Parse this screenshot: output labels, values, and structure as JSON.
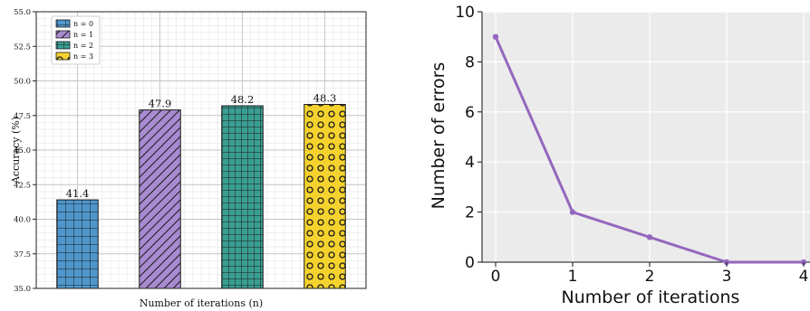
{
  "chart_data": [
    {
      "type": "bar",
      "categories": [
        "n = 0",
        "n = 1",
        "n = 2",
        "n = 3"
      ],
      "values": [
        41.4,
        47.9,
        48.2,
        48.3
      ],
      "data_labels": [
        "41.4",
        "47.9",
        "48.2",
        "48.3"
      ],
      "series": [
        {
          "name": "n = 0",
          "value": 41.4,
          "color": "#4f97cc",
          "pattern": "grid"
        },
        {
          "name": "n = 1",
          "value": 47.9,
          "color": "#a98bd1",
          "pattern": "diagonal-hatch"
        },
        {
          "name": "n = 2",
          "value": 48.2,
          "color": "#3a9e93",
          "pattern": "dense-grid"
        },
        {
          "name": "n = 3",
          "value": 48.3,
          "color": "#f5d22e",
          "pattern": "circles"
        }
      ],
      "title": "",
      "xlabel": "Number of iterations (n)",
      "ylabel": "Accuracy (%)",
      "ylim": [
        35.0,
        55.0
      ],
      "yticks": [
        "35.0",
        "37.5",
        "40.0",
        "42.5",
        "45.0",
        "47.5",
        "50.0",
        "52.5",
        "55.0"
      ],
      "grid": true,
      "legend_position": "top-left"
    },
    {
      "type": "line",
      "x": [
        0,
        1,
        2,
        3,
        4
      ],
      "y": [
        9,
        2,
        1,
        0,
        0
      ],
      "series": [
        {
          "values": [
            9,
            2,
            1,
            0,
            0
          ],
          "color": "#9467bd"
        }
      ],
      "title": "",
      "xlabel": "Number of iterations",
      "ylabel": "Number of errors",
      "xlim": [
        0,
        4
      ],
      "ylim": [
        0,
        10
      ],
      "xticks": [
        "0",
        "1",
        "2",
        "3",
        "4"
      ],
      "yticks": [
        "0",
        "2",
        "4",
        "6",
        "8",
        "10"
      ],
      "grid": true,
      "background": "#ebebeb"
    }
  ]
}
